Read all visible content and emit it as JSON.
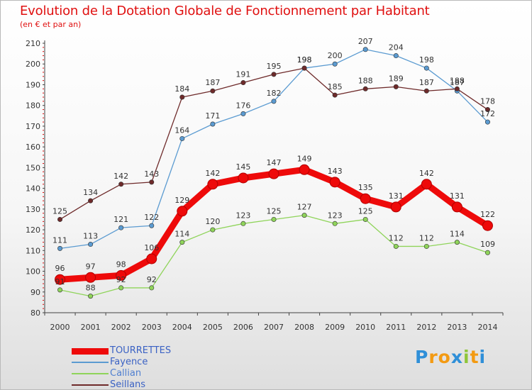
{
  "chart_data": {
    "type": "line",
    "title": "Evolution de la Dotation Globale de Fonctionnement par Habitant",
    "subtitle": "(en € et par an)",
    "xlabel": "",
    "ylabel": "",
    "ylim": [
      80,
      210
    ],
    "ytick_step": 10,
    "grid": false,
    "categories": [
      "2000",
      "2001",
      "2002",
      "2003",
      "2004",
      "2005",
      "2006",
      "2007",
      "2008",
      "2009",
      "2010",
      "2011",
      "2012",
      "2013",
      "2014"
    ],
    "series": [
      {
        "name": "TOURRETTES",
        "color": "#ee0a0a",
        "emphasis": true,
        "values": [
          96,
          97,
          98,
          106,
          129,
          142,
          145,
          147,
          149,
          143,
          135,
          131,
          142,
          131,
          122
        ],
        "labels": [
          "96",
          "97",
          "98",
          "106",
          "129",
          "142",
          "145",
          "147",
          "149",
          "143",
          "135",
          "131",
          "142",
          "131",
          "122"
        ]
      },
      {
        "name": "Fayence",
        "color": "#5b9bd1",
        "emphasis": false,
        "values": [
          111,
          113,
          121,
          122,
          164,
          171,
          176,
          182,
          198,
          200,
          207,
          204,
          198,
          187,
          172
        ],
        "labels": [
          "111",
          "113",
          "121",
          "122",
          "164",
          "171",
          "176",
          "182",
          "198",
          "200",
          "207",
          "204",
          "198",
          "187",
          "172"
        ]
      },
      {
        "name": "Callian",
        "color": "#8fd45a",
        "emphasis": false,
        "values": [
          91,
          88,
          92,
          92,
          114,
          120,
          123,
          125,
          127,
          123,
          125,
          112,
          112,
          114,
          109
        ],
        "labels": [
          "91",
          "88",
          "92",
          "92",
          "114",
          "120",
          "123",
          "125",
          "127",
          "123",
          "125",
          "112",
          "112",
          "114",
          "109"
        ]
      },
      {
        "name": "Seillans",
        "color": "#6e2a2a",
        "emphasis": false,
        "values": [
          125,
          134,
          142,
          143,
          184,
          187,
          191,
          195,
          198,
          185,
          188,
          189,
          187,
          188,
          178
        ],
        "labels": [
          "125",
          "134",
          "142",
          "143",
          "184",
          "187",
          "191",
          "195",
          "198",
          "185",
          "188",
          "189",
          "187",
          "188",
          "178"
        ]
      }
    ]
  },
  "logo": {
    "letters": [
      "P",
      "r",
      "o",
      "x",
      "i",
      "t",
      "i"
    ],
    "colors": [
      "#2f8fd8",
      "#f39a12",
      "#f39a12",
      "#2f8fd8",
      "#8fc63a",
      "#f39a12",
      "#2f8fd8"
    ]
  }
}
